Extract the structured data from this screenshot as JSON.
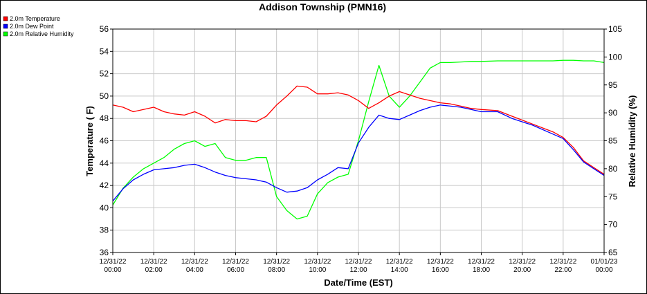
{
  "chart_data": {
    "type": "line",
    "title": "Addison Township (PMN16)",
    "xlabel": "Date/Time (EST)",
    "ylabel_left": "Temperature ( F)",
    "ylabel_right": "Relative Humidity (%)",
    "ylim_left": [
      36,
      56
    ],
    "ylim_right": [
      65,
      105
    ],
    "xlim": [
      0,
      24
    ],
    "left_ticks": [
      "36",
      "38",
      "40",
      "42",
      "44",
      "46",
      "48",
      "50",
      "52",
      "54",
      "56"
    ],
    "right_ticks": [
      "65",
      "70",
      "75",
      "80",
      "85",
      "90",
      "95",
      "100",
      "105"
    ],
    "x_tick_dates": [
      "12/31/22",
      "12/31/22",
      "12/31/22",
      "12/31/22",
      "12/31/22",
      "12/31/22",
      "12/31/22",
      "12/31/22",
      "12/31/22",
      "12/31/22",
      "12/31/22",
      "12/31/22",
      "01/01/23"
    ],
    "x_tick_times": [
      "00:00",
      "02:00",
      "04:00",
      "06:00",
      "08:00",
      "10:00",
      "12:00",
      "14:00",
      "16:00",
      "18:00",
      "20:00",
      "22:00",
      "00:00"
    ],
    "grid": true,
    "legend_position": "top-left",
    "series": [
      {
        "name": "2.0m Temperature",
        "color": "#ff0000",
        "axis": "left",
        "x": [
          0,
          0.5,
          1,
          1.5,
          2,
          2.5,
          3,
          3.5,
          4,
          4.5,
          5,
          5.5,
          6,
          6.5,
          7,
          7.5,
          8,
          8.5,
          9,
          9.5,
          10,
          10.5,
          11,
          11.5,
          12,
          12.5,
          13,
          13.5,
          14,
          14.5,
          15,
          15.5,
          16,
          16.5,
          17,
          17.5,
          18,
          18.8,
          19.5,
          20.5,
          21.5,
          22,
          22.5,
          23,
          23.5,
          24
        ],
        "y": [
          49.2,
          49.0,
          48.6,
          48.8,
          49.0,
          48.6,
          48.4,
          48.3,
          48.6,
          48.2,
          47.6,
          47.9,
          47.8,
          47.8,
          47.7,
          48.2,
          49.2,
          50.0,
          50.9,
          50.8,
          50.2,
          50.2,
          50.3,
          50.1,
          49.6,
          48.9,
          49.4,
          50.0,
          50.4,
          50.1,
          49.8,
          49.6,
          49.4,
          49.3,
          49.1,
          48.9,
          48.8,
          48.7,
          48.2,
          47.5,
          46.8,
          46.3,
          45.4,
          44.2,
          43.6,
          43.0
        ]
      },
      {
        "name": "2.0m Dew Point",
        "color": "#0000ff",
        "axis": "left",
        "x": [
          0,
          0.5,
          1,
          1.5,
          2,
          2.5,
          3,
          3.5,
          4,
          4.5,
          5,
          5.5,
          6,
          6.5,
          7,
          7.5,
          8,
          8.5,
          9,
          9.5,
          10,
          10.5,
          11,
          11.5,
          12,
          12.5,
          13,
          13.5,
          14,
          14.5,
          15,
          15.5,
          16,
          16.5,
          17,
          17.5,
          18,
          18.8,
          19.5,
          20.5,
          21.5,
          22,
          22.5,
          23,
          23.5,
          24
        ],
        "y": [
          40.6,
          41.7,
          42.5,
          43.0,
          43.4,
          43.5,
          43.6,
          43.8,
          43.9,
          43.6,
          43.2,
          42.9,
          42.7,
          42.6,
          42.5,
          42.3,
          41.8,
          41.4,
          41.5,
          41.8,
          42.5,
          43.0,
          43.6,
          43.5,
          45.8,
          47.2,
          48.3,
          48.0,
          47.9,
          48.3,
          48.7,
          49.0,
          49.2,
          49.1,
          49.0,
          48.8,
          48.6,
          48.6,
          48.0,
          47.4,
          46.6,
          46.2,
          45.2,
          44.1,
          43.5,
          42.9
        ]
      },
      {
        "name": "2.0m Relative Humidity",
        "color": "#00ff00",
        "axis": "right",
        "x": [
          0,
          0.5,
          1,
          1.5,
          2,
          2.5,
          3,
          3.5,
          4,
          4.5,
          5,
          5.5,
          6,
          6.5,
          7,
          7.5,
          8,
          8.5,
          9,
          9.5,
          10,
          10.5,
          11,
          11.5,
          12,
          12.5,
          13,
          13.5,
          14,
          14.5,
          15,
          15.5,
          16,
          16.5,
          17,
          17.5,
          18,
          18.8,
          19.5,
          20.5,
          21.5,
          22,
          22.5,
          23,
          23.5,
          24
        ],
        "y": [
          73.5,
          76.5,
          78.5,
          80.0,
          81.0,
          82.0,
          83.5,
          84.5,
          85.0,
          84.0,
          84.5,
          82.0,
          81.5,
          81.5,
          82.0,
          82.0,
          75.0,
          72.5,
          71.0,
          71.5,
          75.5,
          77.5,
          78.5,
          79.0,
          85.0,
          92.0,
          98.5,
          93.0,
          91.0,
          93.0,
          95.5,
          98.0,
          99.0,
          99.0,
          99.1,
          99.2,
          99.2,
          99.3,
          99.3,
          99.3,
          99.3,
          99.4,
          99.4,
          99.3,
          99.3,
          99.0
        ]
      }
    ]
  }
}
